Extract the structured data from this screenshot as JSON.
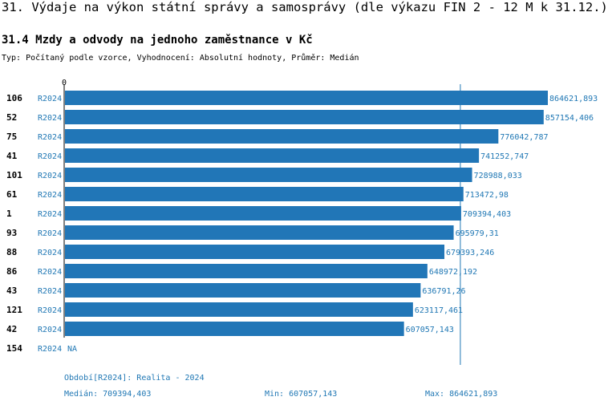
{
  "header": {
    "title": "31. Výdaje na výkon státní správy a samosprávy (dle výkazu FIN 2 - 12 M k 31.12.)",
    "subtitle": "31.4 Mzdy a odvody na jednoho zaměstnance v Kč",
    "typeline": "Typ: Počítaný podle vzorce, Vyhodnocení: Absolutní hodnoty, Průměr: Medián"
  },
  "colors": {
    "bar": "#2176b7",
    "text_accent": "#1f77b4",
    "axis": "#000000",
    "median_line": "#1f77b4"
  },
  "chart_data": {
    "type": "bar",
    "orientation": "horizontal",
    "axis_zero_label": "0",
    "xlim": [
      0,
      864621.893
    ],
    "median": 709394.403,
    "rows": [
      {
        "id": "106",
        "series": "R2024",
        "value": 864621.893,
        "label": "864621,893"
      },
      {
        "id": "52",
        "series": "R2024",
        "value": 857154.406,
        "label": "857154,406"
      },
      {
        "id": "75",
        "series": "R2024",
        "value": 776042.787,
        "label": "776042,787"
      },
      {
        "id": "41",
        "series": "R2024",
        "value": 741252.747,
        "label": "741252,747"
      },
      {
        "id": "101",
        "series": "R2024",
        "value": 728988.033,
        "label": "728988,033"
      },
      {
        "id": "61",
        "series": "R2024",
        "value": 713472.98,
        "label": "713472,98"
      },
      {
        "id": "1",
        "series": "R2024",
        "value": 709394.403,
        "label": "709394,403"
      },
      {
        "id": "93",
        "series": "R2024",
        "value": 695979.31,
        "label": "695979,31"
      },
      {
        "id": "88",
        "series": "R2024",
        "value": 679393.246,
        "label": "679393,246"
      },
      {
        "id": "86",
        "series": "R2024",
        "value": 648972.192,
        "label": "648972,192"
      },
      {
        "id": "43",
        "series": "R2024",
        "value": 636791.26,
        "label": "636791,26"
      },
      {
        "id": "121",
        "series": "R2024",
        "value": 623117.461,
        "label": "623117,461"
      },
      {
        "id": "42",
        "series": "R2024",
        "value": 607057.143,
        "label": "607057,143"
      },
      {
        "id": "154",
        "series": "R2024",
        "value": null,
        "label": "NA"
      }
    ]
  },
  "footer": {
    "period": "Období[R2024]: Realita - 2024",
    "median": "Medián: 709394,403",
    "min": "Min: 607057,143",
    "max": "Max: 864621,893"
  }
}
